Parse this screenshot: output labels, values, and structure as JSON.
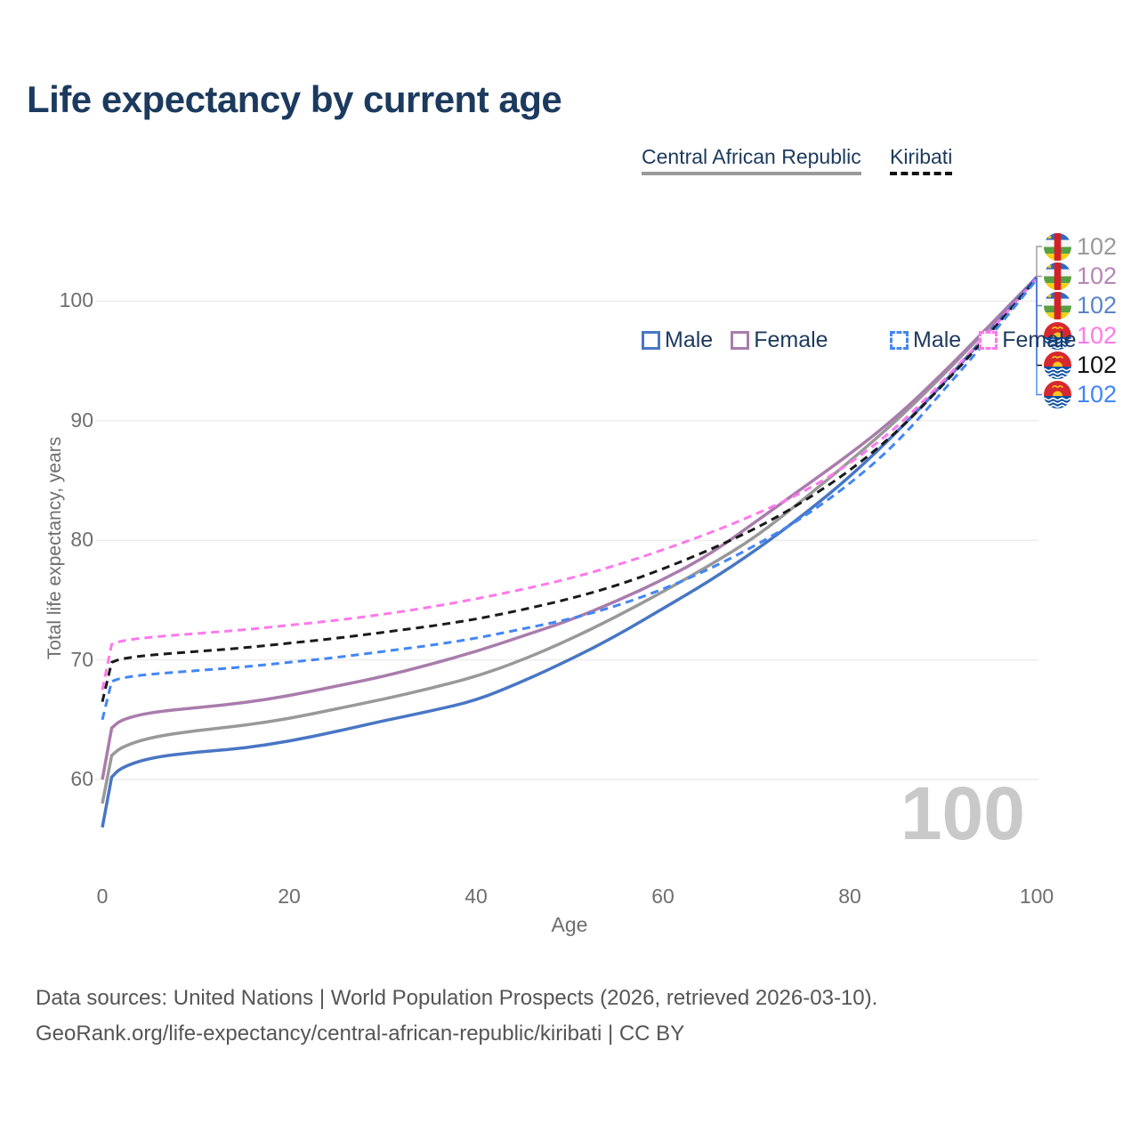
{
  "title": "Life expectancy by current age",
  "legend": {
    "groups": [
      {
        "label": "Central African Republic",
        "line_style": "solid",
        "line_color": "#9a9a9a",
        "items": [
          {
            "label": "Male",
            "color": "#4876c4",
            "style": "solid"
          },
          {
            "label": "Female",
            "color": "#a97cac",
            "style": "solid"
          }
        ]
      },
      {
        "label": "Kiribati",
        "line_style": "dashed",
        "line_color": "#111111",
        "items": [
          {
            "label": "Male",
            "color": "#4286f4",
            "style": "dashed"
          },
          {
            "label": "Female",
            "color": "#ff78eb",
            "style": "dashed"
          }
        ]
      }
    ]
  },
  "chart_data": {
    "type": "line",
    "title": "Life expectancy by current age",
    "xlabel": "Age",
    "ylabel": "Total life expectancy, years",
    "xlim": [
      0,
      100
    ],
    "ylim": [
      55,
      104
    ],
    "x_ticks": [
      0,
      20,
      40,
      60,
      80,
      100
    ],
    "y_ticks": [
      60,
      70,
      80,
      90,
      100
    ],
    "grid": "horizontal",
    "legend_position": "top-right",
    "x": [
      0,
      1,
      2,
      5,
      10,
      15,
      20,
      25,
      30,
      35,
      40,
      45,
      50,
      55,
      60,
      65,
      70,
      75,
      80,
      85,
      90,
      95,
      100
    ],
    "series": [
      {
        "name": "Central African Republic Total",
        "country": "central-african-republic",
        "sex": "total",
        "color": "#999999",
        "dash": "solid",
        "width": 3.5,
        "values": [
          58.0,
          62.0,
          62.7,
          63.5,
          64.1,
          64.5,
          65.1,
          65.9,
          66.7,
          67.6,
          68.6,
          70.0,
          71.7,
          73.6,
          75.7,
          77.9,
          80.3,
          83.4,
          86.6,
          90.0,
          93.8,
          97.9,
          102.0
        ]
      },
      {
        "name": "Central African Republic Female",
        "country": "central-african-republic",
        "sex": "female",
        "color": "#a97cac",
        "dash": "solid",
        "width": 3.5,
        "values": [
          60.0,
          64.3,
          65.0,
          65.6,
          66.0,
          66.4,
          67.0,
          67.8,
          68.6,
          69.6,
          70.7,
          72.0,
          73.3,
          74.9,
          76.7,
          78.8,
          81.6,
          84.4,
          87.2,
          90.3,
          94.0,
          98.0,
          102.0
        ]
      },
      {
        "name": "Central African Republic Male",
        "country": "central-african-republic",
        "sex": "male",
        "color": "#4876c4",
        "dash": "solid",
        "width": 3.5,
        "values": [
          56.0,
          60.2,
          61.0,
          61.8,
          62.3,
          62.6,
          63.2,
          64.0,
          64.9,
          65.7,
          66.6,
          68.2,
          70.0,
          72.0,
          74.3,
          76.6,
          79.2,
          82.1,
          85.3,
          89.0,
          93.1,
          97.5,
          102.0
        ]
      },
      {
        "name": "Kiribati Female",
        "country": "kiribati",
        "sex": "female",
        "color": "#ff78eb",
        "dash": "dashed",
        "width": 3,
        "values": [
          67.5,
          71.3,
          71.6,
          71.9,
          72.2,
          72.5,
          72.9,
          73.3,
          73.8,
          74.4,
          75.1,
          75.9,
          76.8,
          77.9,
          79.2,
          80.6,
          82.2,
          84.0,
          86.4,
          89.4,
          93.3,
          97.5,
          101.9
        ]
      },
      {
        "name": "Kiribati Total",
        "country": "kiribati",
        "sex": "total",
        "color": "#1a1a1a",
        "dash": "dashed",
        "width": 3,
        "values": [
          66.5,
          69.8,
          70.1,
          70.4,
          70.7,
          71.0,
          71.4,
          71.8,
          72.3,
          72.8,
          73.4,
          74.2,
          75.1,
          76.2,
          77.6,
          79.2,
          81.0,
          83.2,
          85.8,
          89.0,
          93.0,
          97.3,
          101.9
        ]
      },
      {
        "name": "Kiribati Male",
        "country": "kiribati",
        "sex": "male",
        "color": "#4286f4",
        "dash": "dashed",
        "width": 3,
        "values": [
          65.0,
          68.2,
          68.5,
          68.8,
          69.1,
          69.4,
          69.8,
          70.2,
          70.7,
          71.2,
          71.8,
          72.6,
          73.4,
          74.5,
          75.9,
          77.6,
          79.6,
          81.9,
          84.7,
          88.1,
          92.5,
          97.0,
          101.8
        ]
      }
    ],
    "end_labels": [
      {
        "flag": "central-african-republic",
        "series": "Central African Republic Total",
        "value": "102",
        "color": "#9a9a9a"
      },
      {
        "flag": "central-african-republic",
        "series": "Central African Republic Female",
        "value": "102",
        "color": "#b586b8"
      },
      {
        "flag": "central-african-republic",
        "series": "Central African Republic Male",
        "value": "102",
        "color": "#5b84c8"
      },
      {
        "flag": "kiribati",
        "series": "Kiribati Female",
        "value": "102",
        "color": "#ff78eb"
      },
      {
        "flag": "kiribati",
        "series": "Kiribati Total",
        "value": "102",
        "color": "#111111"
      },
      {
        "flag": "kiribati",
        "series": "Kiribati Male",
        "value": "102",
        "color": "#4286f4"
      }
    ]
  },
  "annotations": {
    "watermark": "100"
  },
  "footer": {
    "line1": "Data sources: United Nations | World Population Prospects (2026, retrieved 2026-03-10).",
    "line2": "GeoRank.org/life-expectancy/central-african-republic/kiribati | CC BY"
  }
}
